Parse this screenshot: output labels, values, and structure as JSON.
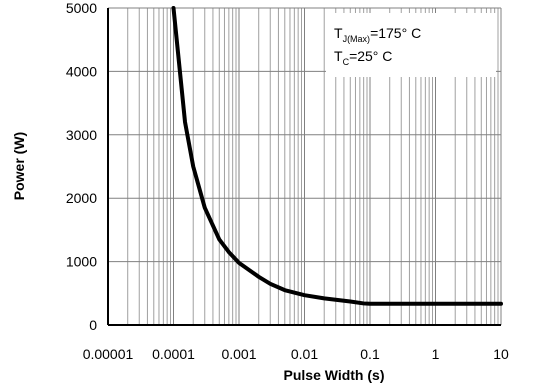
{
  "chart_data": {
    "type": "line",
    "title": "",
    "xlabel": "Pulse Width (s)",
    "ylabel": "Power (W)",
    "x_scale": "log",
    "xlim": [
      1e-05,
      10
    ],
    "ylim": [
      0,
      5000
    ],
    "x_ticks": [
      {
        "value": 1e-05,
        "label": "0.00001"
      },
      {
        "value": 0.0001,
        "label": "0.0001"
      },
      {
        "value": 0.001,
        "label": "0.001"
      },
      {
        "value": 0.01,
        "label": "0.01"
      },
      {
        "value": 0.1,
        "label": "0.1"
      },
      {
        "value": 1,
        "label": "1"
      },
      {
        "value": 10,
        "label": "10"
      }
    ],
    "y_ticks": [
      {
        "value": 0,
        "label": "0"
      },
      {
        "value": 1000,
        "label": "1000"
      },
      {
        "value": 2000,
        "label": "2000"
      },
      {
        "value": 3000,
        "label": "3000"
      },
      {
        "value": 4000,
        "label": "4000"
      },
      {
        "value": 5000,
        "label": "5000"
      }
    ],
    "grid": true,
    "legend": "none",
    "line_color": "#000000",
    "grid_color": "#a0a0a0",
    "series": [
      {
        "name": "",
        "x": [
          0.0001,
          0.00015,
          0.0002,
          0.0003,
          0.0005,
          0.0007,
          0.001,
          0.002,
          0.003,
          0.005,
          0.01,
          0.02,
          0.05,
          0.08,
          0.1,
          0.2,
          0.5,
          1,
          2,
          5,
          10
        ],
        "y": [
          5000,
          3200,
          2500,
          1850,
          1350,
          1150,
          980,
          760,
          650,
          550,
          470,
          420,
          370,
          340,
          335,
          335,
          335,
          335,
          335,
          335,
          335
        ]
      }
    ],
    "annotation": {
      "line1_main": "T",
      "line1_sub": "J(Max)",
      "line1_rest": "=175° C",
      "line2_main": "T",
      "line2_sub": "C",
      "line2_rest": "=25° C"
    }
  }
}
